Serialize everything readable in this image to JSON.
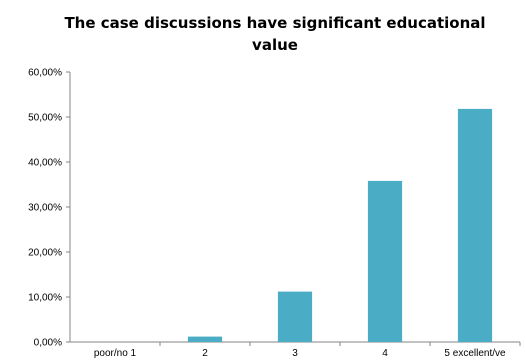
{
  "chart_data": {
    "type": "bar",
    "title": "The case discussions have significant educational value",
    "xlabel": "",
    "ylabel": "",
    "categories": [
      "poor/no 1",
      "2",
      "3",
      "4",
      "5 excellent/ve"
    ],
    "values": [
      0.0,
      1.2,
      11.2,
      35.8,
      51.8
    ],
    "y_ticks": [
      "0,00%",
      "10,00%",
      "20,00%",
      "30,00%",
      "40,00%",
      "50,00%",
      "60,00%"
    ],
    "ylim": [
      0,
      60
    ],
    "grid": false,
    "legend": "none",
    "bar_color": "#4bacc6",
    "axis_color": "#868686"
  }
}
